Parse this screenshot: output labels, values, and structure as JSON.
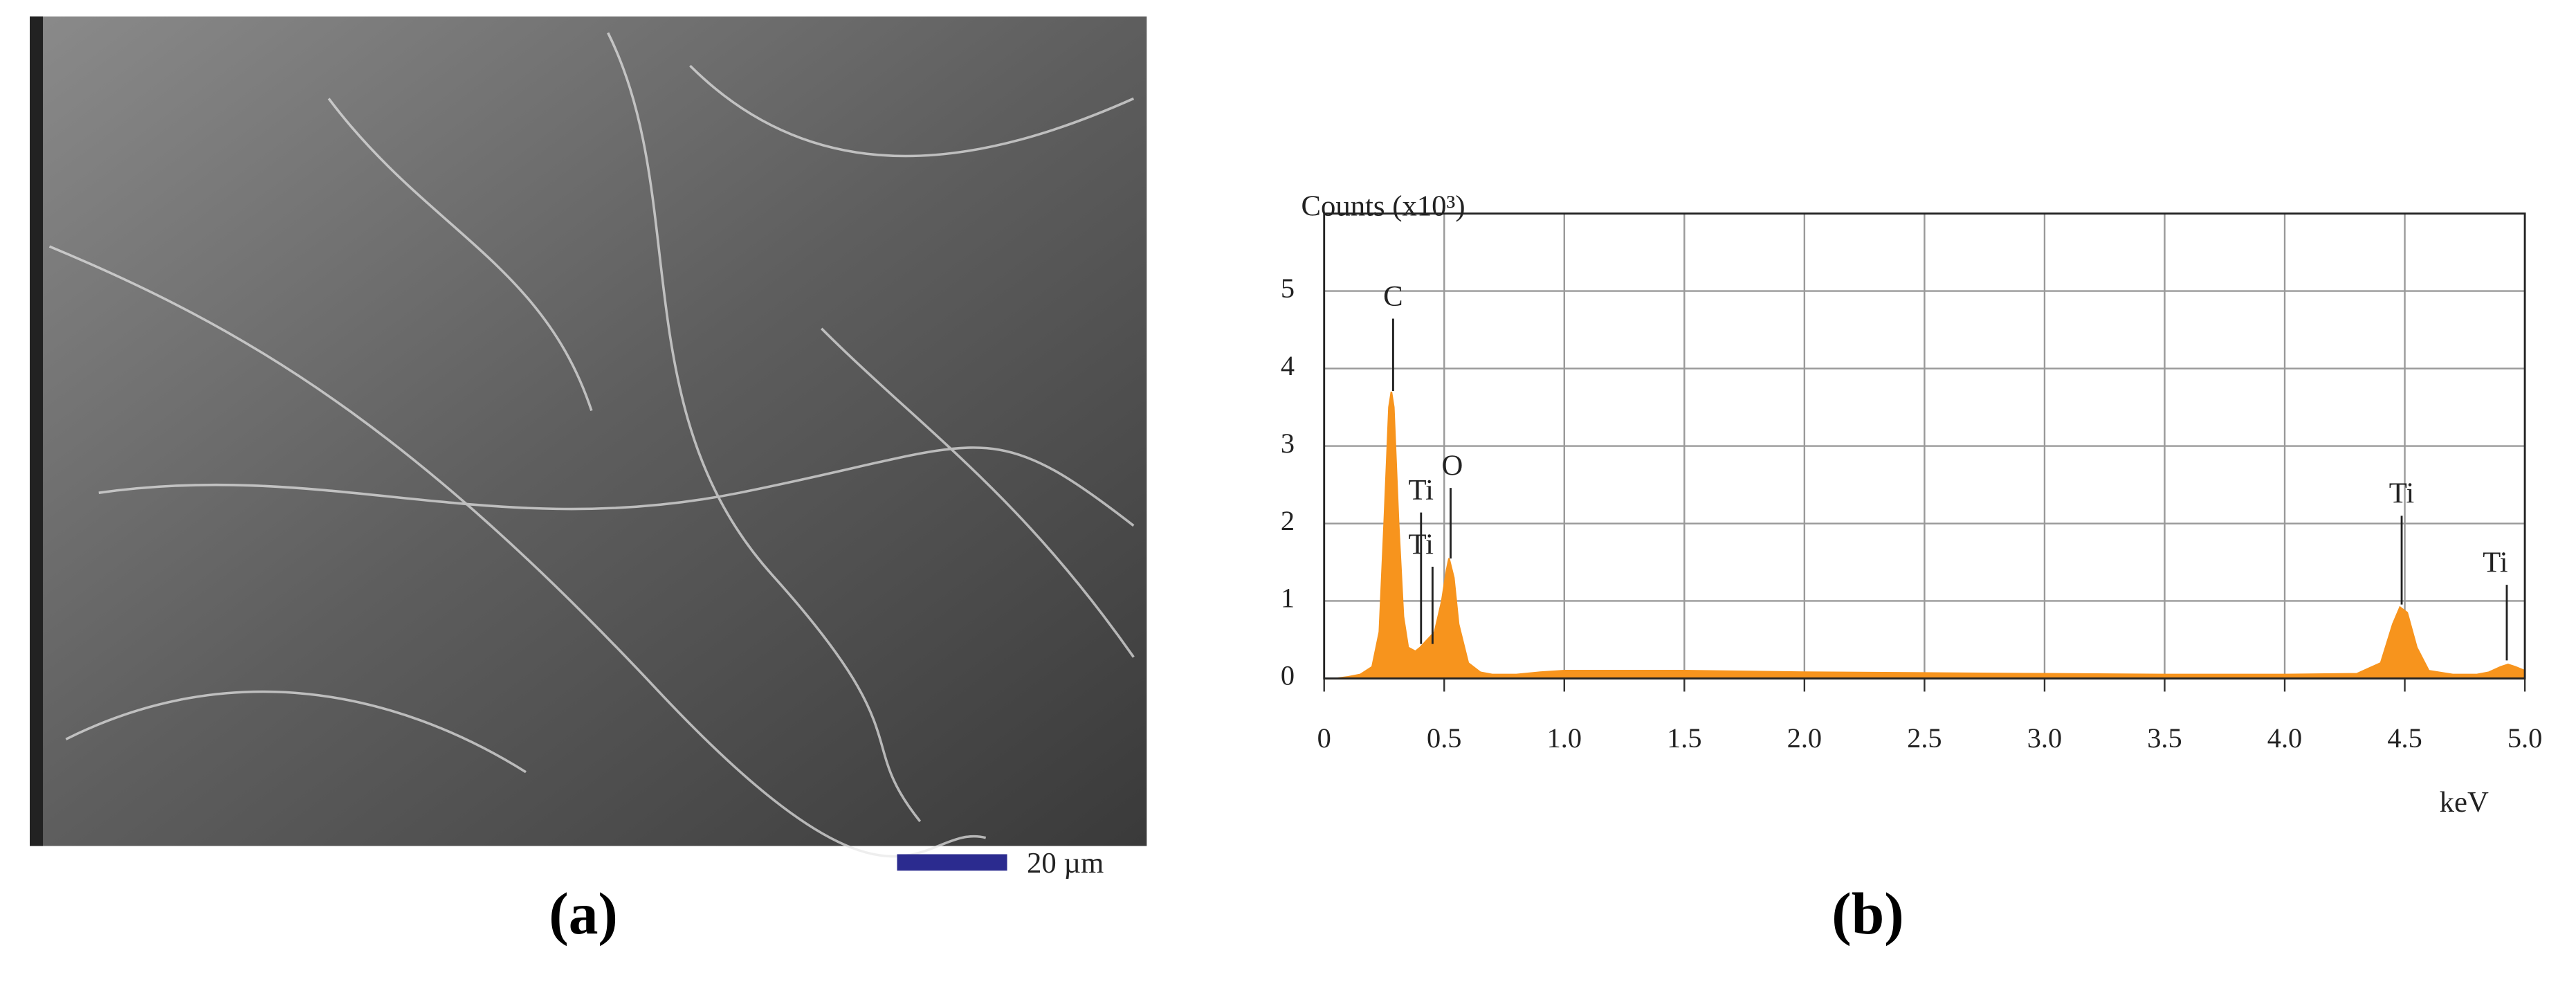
{
  "panels": {
    "a": {
      "label": "(a)",
      "scale_bar": "20 µm"
    },
    "b": {
      "label": "(b)"
    }
  },
  "chart_data": {
    "type": "area",
    "ylabel": "Counts (x10³)",
    "xlabel": "keV",
    "xlim": [
      0,
      5
    ],
    "ylim": [
      0,
      6
    ],
    "xticks": [
      0,
      0.5,
      {
        "value": 1,
        "label": "1.0"
      },
      1.5,
      {
        "value": 2,
        "label": "2.0"
      },
      2.5,
      {
        "value": 3,
        "label": "3.0"
      },
      3.5,
      {
        "value": 4,
        "label": "4.0"
      },
      4.5,
      {
        "value": 5,
        "label": "5.0"
      }
    ],
    "yticks": [
      0,
      1,
      2,
      3,
      4,
      5
    ],
    "grid": true,
    "annotations": [
      "C",
      "Ti",
      "Ti",
      "O",
      "Ti",
      "Ti"
    ],
    "series": [
      {
        "color": "#f7941d",
        "x": [
          0,
          0.05,
          0.1,
          0.15,
          0.2,
          0.23,
          0.25,
          0.27,
          0.28,
          0.29,
          0.31,
          0.33,
          0.35,
          0.38,
          0.4,
          0.43,
          0.46,
          0.49,
          0.51,
          0.52,
          0.54,
          0.56,
          0.6,
          0.65,
          0.7,
          0.8,
          0.9,
          1.0,
          1.5,
          2.0,
          2.5,
          3.0,
          3.5,
          4.0,
          4.3,
          4.4,
          4.45,
          4.48,
          4.51,
          4.55,
          4.6,
          4.7,
          4.8,
          4.85,
          4.9,
          4.93,
          4.96,
          5.0
        ],
        "values": [
          0,
          0,
          0.02,
          0.05,
          0.15,
          0.6,
          2.0,
          3.5,
          3.7,
          3.5,
          2.0,
          0.8,
          0.4,
          0.35,
          0.4,
          0.5,
          0.6,
          1.0,
          1.4,
          1.55,
          1.3,
          0.7,
          0.2,
          0.08,
          0.05,
          0.05,
          0.08,
          0.1,
          0.1,
          0.08,
          0.07,
          0.06,
          0.05,
          0.05,
          0.06,
          0.2,
          0.7,
          0.92,
          0.85,
          0.4,
          0.1,
          0.05,
          0.05,
          0.08,
          0.15,
          0.18,
          0.15,
          0.1
        ]
      }
    ]
  }
}
